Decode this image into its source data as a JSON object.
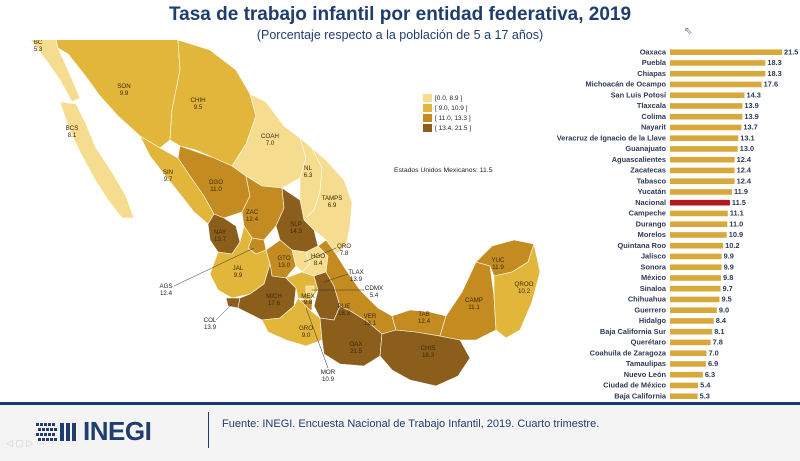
{
  "header": {
    "title": "Tasa de trabajo infantil por entidad federativa, 2019",
    "subtitle": "(Porcentaje respecto a la población de 5 a 17 años)"
  },
  "legend": {
    "ranges": [
      "[0.0, 8.9 ]",
      "[ 9.0, 10.9 ]",
      "[ 11.0, 13.3 ]",
      "[ 13.4, 21.5 ]"
    ],
    "colors": [
      "#f6dc8e",
      "#e2b63a",
      "#c48c20",
      "#8b5e1c"
    ]
  },
  "national_note": "Estados Unidos Mexicanos: 11.5",
  "map_labels": [
    {
      "abbr": "BC",
      "val": "5.3"
    },
    {
      "abbr": "SON",
      "val": "9.9"
    },
    {
      "abbr": "CHIH",
      "val": "9.5"
    },
    {
      "abbr": "COAH",
      "val": "7.0"
    },
    {
      "abbr": "NL",
      "val": "6.3"
    },
    {
      "abbr": "TAMPS",
      "val": "6.9"
    },
    {
      "abbr": "BCS",
      "val": "8.1"
    },
    {
      "abbr": "SIN",
      "val": "9.7"
    },
    {
      "abbr": "DGO",
      "val": "11.0"
    },
    {
      "abbr": "ZAC",
      "val": "12.4"
    },
    {
      "abbr": "SLP",
      "val": "14.3"
    },
    {
      "abbr": "NAY",
      "val": "13.7"
    },
    {
      "abbr": "JAL",
      "val": "9.9"
    },
    {
      "abbr": "GTO",
      "val": "13.0"
    },
    {
      "abbr": "HGO",
      "val": "8.4"
    },
    {
      "abbr": "QRO",
      "val": "7.8"
    },
    {
      "abbr": "TLAX",
      "val": "13.9"
    },
    {
      "abbr": "CDMX",
      "val": "5.4"
    },
    {
      "abbr": "AGS",
      "val": "12.4"
    },
    {
      "abbr": "MEX",
      "val": "9.8"
    },
    {
      "abbr": "PUE",
      "val": "18.3"
    },
    {
      "abbr": "VER",
      "val": "13.1"
    },
    {
      "abbr": "MICH",
      "val": "17.6"
    },
    {
      "abbr": "COL",
      "val": "13.9"
    },
    {
      "abbr": "GRO",
      "val": "9.0"
    },
    {
      "abbr": "MOR",
      "val": "10.9"
    },
    {
      "abbr": "OAX",
      "val": "21.5"
    },
    {
      "abbr": "CHIS",
      "val": "18.3"
    },
    {
      "abbr": "TAB",
      "val": "12.4"
    },
    {
      "abbr": "CAMP",
      "val": "11.1"
    },
    {
      "abbr": "YUC",
      "val": "11.9"
    },
    {
      "abbr": "QROO",
      "val": "10.2"
    }
  ],
  "chart_data": {
    "type": "bar",
    "orientation": "horizontal",
    "title": "Tasa de trabajo infantil por entidad federativa, 2019",
    "subtitle": "(Porcentaje respecto a la población de 5 a 17 años)",
    "categories": [
      "Oaxaca",
      "Puebla",
      "Chiapas",
      "Michoacán de Ocampo",
      "San Luis Potosí",
      "Tlaxcala",
      "Colima",
      "Nayarit",
      "Veracruz de Ignacio de la Llave",
      "Guanajuato",
      "Aguascalientes",
      "Zacatecas",
      "Tabasco",
      "Yucatán",
      "Nacional",
      "Campeche",
      "Durango",
      "Morelos",
      "Quintana Roo",
      "Jalisco",
      "Sonora",
      "México",
      "Sinaloa",
      "Chihuahua",
      "Guerrero",
      "Hidalgo",
      "Baja California Sur",
      "Querétaro",
      "Coahuila de Zaragoza",
      "Tamaulipas",
      "Nuevo León",
      "Ciudad de México",
      "Baja California"
    ],
    "values": [
      21.5,
      18.3,
      18.3,
      17.6,
      14.3,
      13.9,
      13.9,
      13.7,
      13.1,
      13.0,
      12.4,
      12.4,
      12.4,
      11.9,
      11.5,
      11.1,
      11.0,
      10.9,
      10.2,
      9.9,
      9.9,
      9.8,
      9.7,
      9.5,
      9.0,
      8.4,
      8.1,
      7.8,
      7.0,
      6.9,
      6.3,
      5.4,
      5.3
    ],
    "value_labels": [
      "21.5",
      "18.3",
      "18.3",
      "17.6",
      "14.3",
      "13.9",
      "13.9",
      "13.7",
      "13.1",
      "13.0",
      "12.4",
      "12.4",
      "12.4",
      "11.9",
      "11.5",
      "11.1",
      "11.0",
      "10.9",
      "10.2",
      "9.9",
      "9.9",
      "9.8",
      "9.7",
      "9.5",
      "9.0",
      "8.4",
      "8.1",
      "7.8",
      "7.0",
      "6.9",
      "6.3",
      "5.4",
      "5.3"
    ],
    "highlight": "Nacional",
    "bar_color": "#d8a93a",
    "highlight_color": "#b3161b",
    "xlim": [
      0,
      21.5
    ]
  },
  "footer": {
    "logo_text": "INEGI",
    "source": "Fuente:  INEGI. Encuesta Nacional de Trabajo Infantil, 2019. Cuarto trimestre."
  },
  "colors": {
    "title": "#1f3d6e"
  }
}
